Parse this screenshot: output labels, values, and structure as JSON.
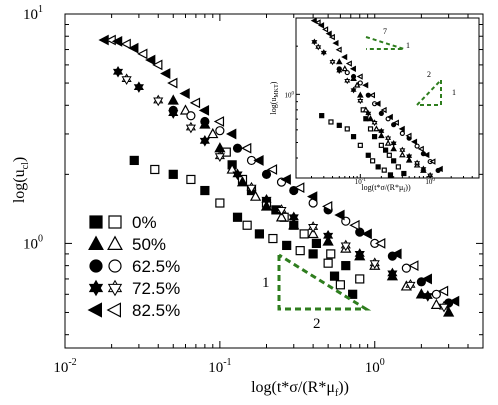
{
  "chart_data": {
    "type": "scatter",
    "xscale": "log",
    "yscale": "log",
    "xlabel": "log(t*σ/(R*μ",
    "xlabel_sub": "f",
    "xlabel_close": "))",
    "ylabel": "log(u",
    "ylabel_sub": "cl",
    "ylabel_close": ")",
    "xlim": [
      0.01,
      5.0
    ],
    "ylim": [
      0.35,
      10
    ],
    "x_ticks": [
      {
        "value": 0.01,
        "base": "10",
        "exp": "-2"
      },
      {
        "value": 0.1,
        "base": "10",
        "exp": "-1"
      },
      {
        "value": 1,
        "base": "10",
        "exp": "0"
      }
    ],
    "y_ticks": [
      {
        "value": 1,
        "base": "10",
        "exp": "0"
      },
      {
        "value": 10,
        "base": "10",
        "exp": "1"
      }
    ],
    "legend_position": "bottom-left",
    "series": [
      {
        "name": "0%",
        "marker": "square",
        "points": [
          [
            0.028,
            2.3
          ],
          [
            0.038,
            2.1
          ],
          [
            0.05,
            2.0
          ],
          [
            0.065,
            1.9
          ],
          [
            0.08,
            1.7
          ],
          [
            0.1,
            1.5
          ],
          [
            0.13,
            1.3
          ],
          [
            0.15,
            1.2
          ],
          [
            0.18,
            1.1
          ],
          [
            0.22,
            1.05
          ],
          [
            0.27,
            0.98
          ],
          [
            0.33,
            0.93
          ],
          [
            0.4,
            0.9
          ],
          [
            0.5,
            0.82
          ],
          [
            0.55,
            0.72
          ],
          [
            0.6,
            0.66
          ],
          [
            0.72,
            0.6
          ],
          [
            0.11,
            2.5
          ],
          [
            0.12,
            2.2
          ],
          [
            0.14,
            1.9
          ],
          [
            0.16,
            1.7
          ],
          [
            0.2,
            1.5
          ],
          [
            0.23,
            1.4
          ],
          [
            0.26,
            1.3
          ],
          [
            0.3,
            1.2
          ],
          [
            0.35,
            1.1
          ],
          [
            0.42,
            1.0
          ],
          [
            0.52,
            0.9
          ],
          [
            0.65,
            0.8
          ],
          [
            0.8,
            0.7
          ]
        ]
      },
      {
        "name": "50%",
        "marker": "triangle",
        "points": [
          [
            0.05,
            4.2
          ],
          [
            0.06,
            3.8
          ],
          [
            0.08,
            3.3
          ],
          [
            0.09,
            3.0
          ],
          [
            0.1,
            2.6
          ],
          [
            0.12,
            2.1
          ],
          [
            0.14,
            1.85
          ],
          [
            0.17,
            1.6
          ],
          [
            0.2,
            1.45
          ],
          [
            0.25,
            1.3
          ],
          [
            0.3,
            1.2
          ],
          [
            0.4,
            1.1
          ],
          [
            0.5,
            1.02
          ],
          [
            0.65,
            0.95
          ],
          [
            0.8,
            0.88
          ],
          [
            1.0,
            0.8
          ],
          [
            1.3,
            0.72
          ],
          [
            1.6,
            0.65
          ],
          [
            2.0,
            0.6
          ],
          [
            2.5,
            0.54
          ],
          [
            3.0,
            0.5
          ]
        ]
      },
      {
        "name": "62.5%",
        "marker": "circle",
        "points": [
          [
            0.05,
            3.8
          ],
          [
            0.065,
            3.6
          ],
          [
            0.08,
            3.4
          ],
          [
            0.1,
            3.1
          ],
          [
            0.13,
            2.6
          ],
          [
            0.16,
            2.3
          ],
          [
            0.2,
            2.0
          ],
          [
            0.25,
            1.85
          ],
          [
            0.3,
            1.7
          ],
          [
            0.4,
            1.5
          ],
          [
            0.5,
            1.4
          ],
          [
            0.65,
            1.25
          ],
          [
            0.8,
            1.12
          ],
          [
            1.0,
            1.0
          ],
          [
            1.3,
            0.88
          ],
          [
            1.6,
            0.78
          ],
          [
            2.0,
            0.68
          ],
          [
            2.5,
            0.6
          ],
          [
            3.0,
            0.55
          ]
        ]
      },
      {
        "name": "72.5%",
        "marker": "star",
        "points": [
          [
            0.022,
            5.6
          ],
          [
            0.025,
            5.2
          ],
          [
            0.03,
            4.8
          ],
          [
            0.04,
            4.2
          ],
          [
            0.05,
            3.7
          ],
          [
            0.065,
            3.2
          ],
          [
            0.08,
            2.8
          ],
          [
            0.1,
            2.4
          ],
          [
            0.13,
            2.0
          ],
          [
            0.16,
            1.75
          ],
          [
            0.2,
            1.55
          ],
          [
            0.25,
            1.4
          ],
          [
            0.3,
            1.3
          ],
          [
            0.4,
            1.18
          ],
          [
            0.5,
            1.08
          ],
          [
            0.65,
            0.98
          ],
          [
            0.8,
            0.9
          ],
          [
            1.0,
            0.82
          ],
          [
            1.3,
            0.74
          ],
          [
            1.7,
            0.66
          ],
          [
            2.2,
            0.59
          ],
          [
            2.8,
            0.53
          ]
        ]
      },
      {
        "name": "82.5%",
        "marker": "triangle-left",
        "points": [
          [
            0.018,
            7.7
          ],
          [
            0.02,
            7.7
          ],
          [
            0.022,
            7.6
          ],
          [
            0.025,
            7.4
          ],
          [
            0.028,
            7.1
          ],
          [
            0.032,
            6.7
          ],
          [
            0.036,
            6.3
          ],
          [
            0.04,
            6.0
          ],
          [
            0.045,
            5.5
          ],
          [
            0.05,
            5.0
          ],
          [
            0.06,
            4.5
          ],
          [
            0.07,
            4.1
          ],
          [
            0.08,
            3.8
          ],
          [
            0.1,
            3.4
          ],
          [
            0.12,
            3.0
          ],
          [
            0.15,
            2.6
          ],
          [
            0.18,
            2.3
          ],
          [
            0.22,
            2.1
          ],
          [
            0.27,
            1.9
          ],
          [
            0.33,
            1.75
          ],
          [
            0.4,
            1.6
          ],
          [
            0.5,
            1.45
          ],
          [
            0.6,
            1.33
          ],
          [
            0.75,
            1.2
          ],
          [
            0.9,
            1.1
          ],
          [
            1.1,
            1.0
          ],
          [
            1.4,
            0.9
          ],
          [
            1.8,
            0.8
          ],
          [
            2.2,
            0.7
          ],
          [
            2.8,
            0.62
          ],
          [
            3.3,
            0.56
          ]
        ]
      }
    ],
    "slope_annotation": {
      "rise": "1",
      "run": "2",
      "color": "#2e7d1e"
    },
    "inset": {
      "ylabel": "log(u",
      "ylabel_sub": "MKT",
      "ylabel_close": ")",
      "xlabel": "log(t*σ/(R*μ",
      "xlabel_sub": "f",
      "xlabel_close": "))",
      "x_ticks": [
        {
          "value": 0.1,
          "base": "10",
          "exp": "-1"
        },
        {
          "value": 1,
          "base": "10",
          "exp": "0"
        }
      ],
      "y_ticks": [
        {
          "value": 1,
          "base": "10",
          "exp": "0"
        }
      ],
      "slope_annotations": [
        {
          "rise": "1",
          "run": "7"
        },
        {
          "rise": "1",
          "run": "2"
        }
      ]
    }
  }
}
